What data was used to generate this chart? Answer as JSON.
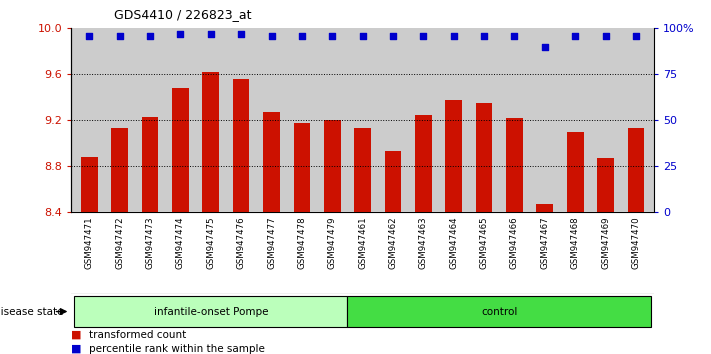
{
  "title": "GDS4410 / 226823_at",
  "samples": [
    "GSM947471",
    "GSM947472",
    "GSM947473",
    "GSM947474",
    "GSM947475",
    "GSM947476",
    "GSM947477",
    "GSM947478",
    "GSM947479",
    "GSM947461",
    "GSM947462",
    "GSM947463",
    "GSM947464",
    "GSM947465",
    "GSM947466",
    "GSM947467",
    "GSM947468",
    "GSM947469",
    "GSM947470"
  ],
  "bar_values": [
    8.88,
    9.13,
    9.23,
    9.48,
    9.62,
    9.56,
    9.27,
    9.18,
    9.2,
    9.13,
    8.93,
    9.25,
    9.38,
    9.35,
    9.22,
    8.47,
    9.1,
    8.87,
    9.13
  ],
  "percentile_values": [
    96,
    96,
    96,
    97,
    97,
    97,
    96,
    96,
    96,
    96,
    96,
    96,
    96,
    96,
    96,
    90,
    96,
    96,
    96
  ],
  "bar_color": "#cc1100",
  "dot_color": "#0000cc",
  "group1_label": "infantile-onset Pompe",
  "group1_count": 9,
  "group2_label": "control",
  "group2_count": 10,
  "group1_color": "#bbffbb",
  "group2_color": "#44dd44",
  "ylim_left": [
    8.4,
    10.0
  ],
  "ylim_right": [
    0,
    100
  ],
  "yticks_left": [
    8.4,
    8.8,
    9.2,
    9.6,
    10.0
  ],
  "yticks_right": [
    0,
    25,
    50,
    75,
    100
  ],
  "yticklabels_right": [
    "0",
    "25",
    "50",
    "75",
    "100%"
  ],
  "bg_color": "#cccccc",
  "legend_entries": [
    "transformed count",
    "percentile rank within the sample"
  ],
  "disease_state_label": "disease state"
}
